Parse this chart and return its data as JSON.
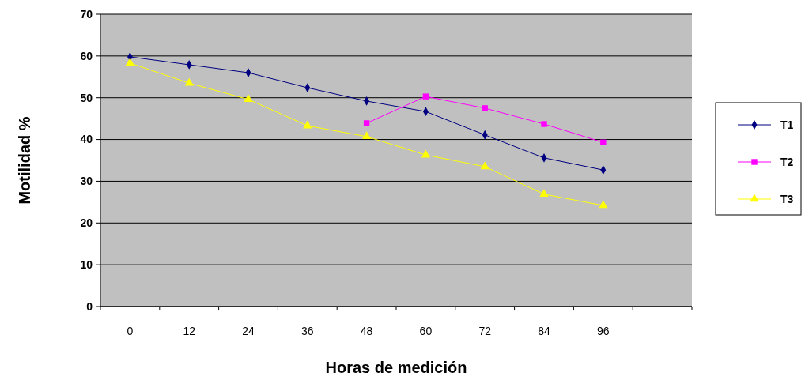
{
  "chart_data": {
    "type": "line",
    "xlabel": "Horas de medición",
    "ylabel": "Motilidad %",
    "categories": [
      "0",
      "12",
      "24",
      "36",
      "48",
      "60",
      "72",
      "84",
      "96",
      null
    ],
    "series": [
      {
        "name": "T1",
        "color": "#000080",
        "marker": "diamond",
        "values": [
          59.8,
          57.9,
          56.0,
          52.4,
          49.2,
          46.7,
          41.1,
          35.6,
          32.7,
          null
        ]
      },
      {
        "name": "T2",
        "color": "#ff00ff",
        "marker": "square",
        "values": [
          null,
          null,
          null,
          null,
          43.9,
          50.3,
          47.5,
          43.7,
          39.3,
          null
        ]
      },
      {
        "name": "T3",
        "color": "#ffff00",
        "marker": "triangle",
        "values": [
          58.3,
          53.5,
          49.6,
          43.3,
          40.7,
          36.3,
          33.5,
          26.9,
          24.2,
          null
        ]
      }
    ],
    "ylim": [
      0,
      70
    ],
    "yticks": [
      0,
      10,
      20,
      30,
      40,
      50,
      60,
      70
    ],
    "grid": "y",
    "legend": "right"
  }
}
